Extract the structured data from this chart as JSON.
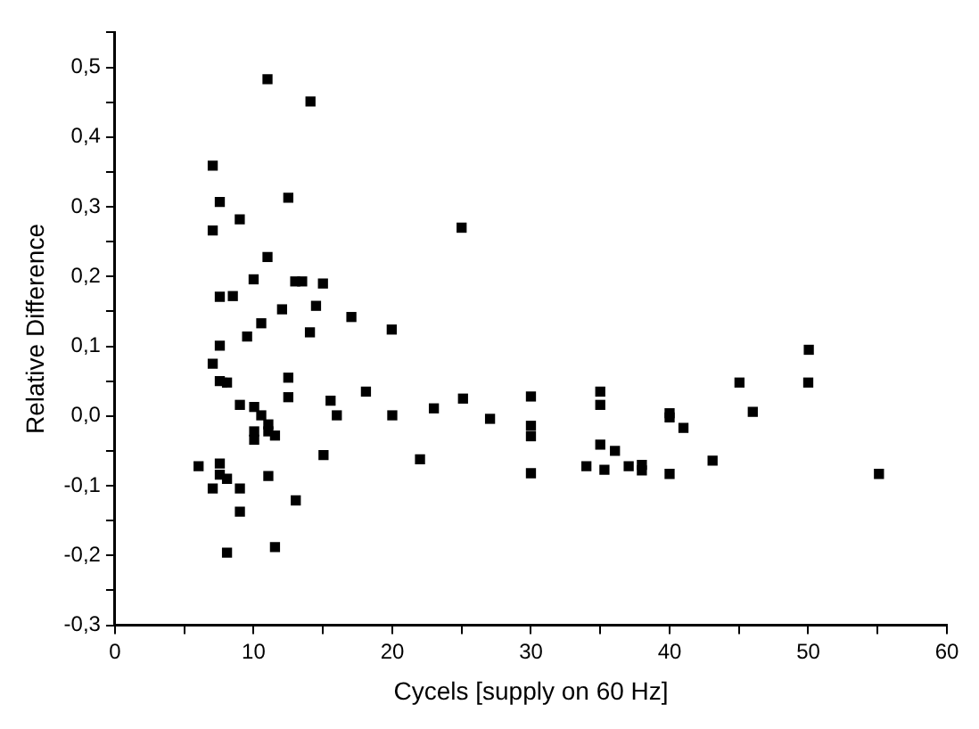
{
  "chart_data": {
    "type": "scatter",
    "xlabel": "Cycels [supply on 60 Hz]",
    "ylabel": "Relative Difference",
    "xlim": [
      0,
      60
    ],
    "xticks": [
      0,
      {
        "value": 5,
        "label": null
      },
      10,
      {
        "value": 15,
        "label": null
      },
      20,
      {
        "value": 25,
        "label": null
      },
      30,
      {
        "value": 35,
        "label": null
      },
      40,
      {
        "value": 45,
        "label": null
      },
      50,
      {
        "value": 55,
        "label": null
      },
      60
    ],
    "ylim": [
      -0.3,
      0.55
    ],
    "yticks": [
      {
        "value": -0.3,
        "label": "-0,3"
      },
      {
        "value": -0.25,
        "label": null
      },
      {
        "value": -0.2,
        "label": "-0,2"
      },
      {
        "value": -0.15,
        "label": null
      },
      {
        "value": -0.1,
        "label": "-0,1"
      },
      {
        "value": -0.05,
        "label": null
      },
      {
        "value": 0,
        "label": "0,0"
      },
      {
        "value": 0.05,
        "label": null
      },
      {
        "value": 0.1,
        "label": "0,1"
      },
      {
        "value": 0.15,
        "label": null
      },
      {
        "value": 0.2,
        "label": "0,2"
      },
      {
        "value": 0.25,
        "label": null
      },
      {
        "value": 0.3,
        "label": "0,3"
      },
      {
        "value": 0.35,
        "label": null
      },
      {
        "value": 0.4,
        "label": "0,4"
      },
      {
        "value": 0.45,
        "label": null
      },
      {
        "value": 0.5,
        "label": "0,5"
      },
      {
        "value": 0.55,
        "label": null
      }
    ],
    "grid": false,
    "legend": false,
    "marker": "square",
    "series": [
      {
        "color": "#000000",
        "x": [
          11.0,
          14.1,
          7.05,
          7.56,
          12.5,
          9.0,
          7.05,
          11.0,
          10.0,
          13.0,
          13.5,
          15.0,
          7.56,
          8.5,
          12.05,
          14.5,
          17.05,
          10.55,
          14.06,
          19.96,
          9.53,
          7.56,
          7.05,
          7.56,
          8.08,
          12.5,
          12.5,
          18.1,
          9.01,
          10.04,
          15.55,
          10.55,
          16.0,
          11.06,
          10.04,
          11.06,
          11.54,
          10.04,
          15.04,
          6.03,
          7.56,
          7.56,
          8.08,
          11.06,
          7.05,
          9.01,
          13.04,
          9.01,
          11.54,
          8.08,
          20.0,
          22.0,
          23.0,
          25.1,
          25.0,
          27.05,
          30.0,
          30.0,
          30.0,
          30.0,
          35.0,
          35.0,
          35.0,
          36.06,
          34.0,
          35.3,
          37.05,
          38.0,
          38.0,
          40.0,
          40.0,
          41.0,
          40.0,
          43.1,
          45.04,
          46.0,
          50.04,
          50.0,
          55.1
        ],
        "values": [
          0.483,
          0.451,
          0.359,
          0.307,
          0.313,
          0.282,
          0.266,
          0.228,
          0.196,
          0.193,
          0.193,
          0.19,
          0.171,
          0.172,
          0.153,
          0.158,
          0.142,
          0.133,
          0.12,
          0.124,
          0.114,
          0.101,
          0.075,
          0.05,
          0.048,
          0.055,
          0.027,
          0.035,
          0.016,
          0.013,
          0.022,
          0.001,
          0.001,
          -0.012,
          -0.022,
          -0.022,
          -0.028,
          -0.034,
          -0.056,
          -0.072,
          -0.068,
          -0.084,
          -0.09,
          -0.086,
          -0.104,
          -0.104,
          -0.121,
          -0.137,
          -0.188,
          -0.196,
          0.001,
          -0.062,
          0.011,
          0.025,
          0.27,
          -0.004,
          0.028,
          -0.014,
          -0.029,
          -0.082,
          0.035,
          0.016,
          -0.041,
          -0.05,
          -0.072,
          -0.077,
          -0.072,
          -0.07,
          -0.078,
          0.004,
          -0.002,
          -0.017,
          -0.083,
          -0.064,
          0.048,
          0.006,
          0.095,
          0.048,
          -0.083
        ]
      }
    ]
  }
}
